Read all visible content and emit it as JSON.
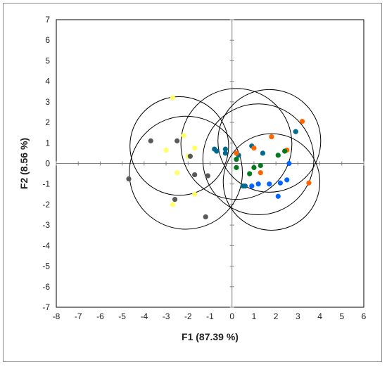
{
  "chart_data": {
    "type": "scatter",
    "title": "",
    "xlabel": "F1 (87.39 %)",
    "ylabel": "F2 (8.56 %)",
    "xlim": [
      -8,
      6
    ],
    "ylim": [
      -7,
      7
    ],
    "xticks": [
      -8,
      -7,
      -6,
      -5,
      -4,
      -3,
      -2,
      -1,
      0,
      1,
      2,
      3,
      4,
      5,
      6
    ],
    "yticks": [
      -7,
      -6,
      -5,
      -4,
      -3,
      -2,
      -1,
      0,
      1,
      2,
      3,
      4,
      5,
      6,
      7
    ],
    "grid": false,
    "legend": "none",
    "series": [
      {
        "color": "#ffff66",
        "points": [
          [
            -2.7,
            3.2
          ],
          [
            -2.2,
            1.35
          ],
          [
            -3.0,
            0.65
          ],
          [
            -1.7,
            0.75
          ],
          [
            -2.0,
            0.35
          ],
          [
            -2.5,
            -0.45
          ],
          [
            -1.7,
            -1.5
          ],
          [
            -2.7,
            -2.0
          ]
        ]
      },
      {
        "color": "#595959",
        "points": [
          [
            -3.7,
            1.1
          ],
          [
            -2.5,
            1.1
          ],
          [
            -1.9,
            0.35
          ],
          [
            -1.7,
            -0.55
          ],
          [
            -1.1,
            -0.6
          ],
          [
            -4.7,
            -0.75
          ],
          [
            -2.6,
            -1.75
          ],
          [
            -1.2,
            -2.6
          ]
        ]
      },
      {
        "color": "#006b8f",
        "points": [
          [
            -0.8,
            0.7
          ],
          [
            -0.7,
            0.6
          ],
          [
            -0.3,
            0.7
          ],
          [
            -0.3,
            0.5
          ],
          [
            0.3,
            0.4
          ],
          [
            0.9,
            0.85
          ],
          [
            1.4,
            0.5
          ],
          [
            2.9,
            1.55
          ],
          [
            0.5,
            -1.1
          ],
          [
            0.6,
            -1.1
          ]
        ]
      },
      {
        "color": "#ff6600",
        "points": [
          [
            0.2,
            0.5
          ],
          [
            1.0,
            0.75
          ],
          [
            1.8,
            1.3
          ],
          [
            3.2,
            2.05
          ],
          [
            2.5,
            0.65
          ],
          [
            1.3,
            -0.45
          ],
          [
            3.5,
            -0.95
          ]
        ]
      },
      {
        "color": "#007a1a",
        "points": [
          [
            0.2,
            0.2
          ],
          [
            0.2,
            -0.2
          ],
          [
            1.0,
            -0.2
          ],
          [
            0.8,
            -0.5
          ],
          [
            1.3,
            -0.1
          ],
          [
            2.1,
            0.4
          ],
          [
            2.4,
            0.6
          ]
        ]
      },
      {
        "color": "#0066ff",
        "points": [
          [
            0.9,
            -1.1
          ],
          [
            1.2,
            -1.0
          ],
          [
            1.7,
            -1.0
          ],
          [
            2.2,
            -0.95
          ],
          [
            2.5,
            -0.8
          ],
          [
            2.6,
            0.0
          ],
          [
            2.1,
            -1.6
          ]
        ]
      }
    ],
    "circles": [
      {
        "cx": -2.4,
        "cy": 0.85,
        "r": 2.4
      },
      {
        "cx": -2.1,
        "cy": -0.45,
        "r": 2.75
      },
      {
        "cx": 0.2,
        "cy": 0.95,
        "r": 2.7
      },
      {
        "cx": 1.7,
        "cy": 1.1,
        "r": 2.5
      },
      {
        "cx": 1.2,
        "cy": 0.2,
        "r": 2.7
      },
      {
        "cx": 1.8,
        "cy": -0.9,
        "r": 2.35
      }
    ]
  }
}
